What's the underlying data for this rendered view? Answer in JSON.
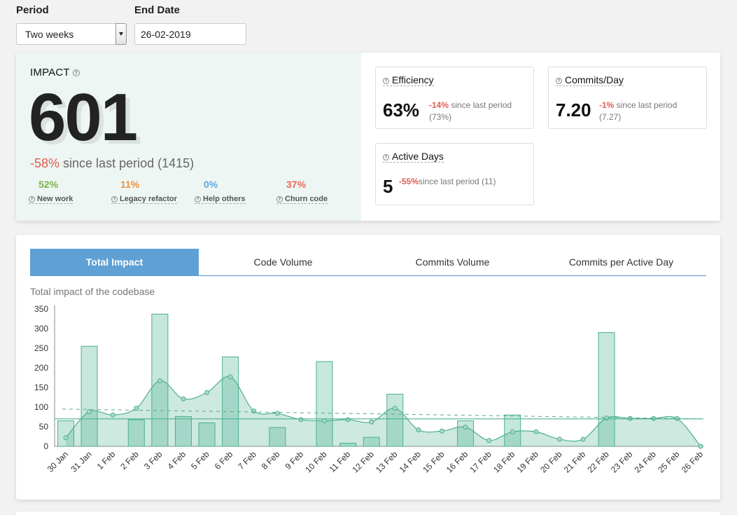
{
  "filters": {
    "period_label": "Period",
    "period_value": "Two weeks",
    "end_date_label": "End Date",
    "end_date_value": "26-02-2019"
  },
  "impact": {
    "title": "IMPACT",
    "value": "601",
    "change": "-58%",
    "since_text": " since last period (1415)",
    "breakdown": [
      {
        "pct": "52%",
        "label": "New work",
        "color": "#7cb342"
      },
      {
        "pct": "11%",
        "label": "Legacy refactor",
        "color": "#f0913c"
      },
      {
        "pct": "0%",
        "label": "Help others",
        "color": "#5fa8e0"
      },
      {
        "pct": "37%",
        "label": "Churn code",
        "color": "#e8685c"
      }
    ]
  },
  "metrics": {
    "efficiency": {
      "title": "Efficiency",
      "value": "63%",
      "change": "-14%",
      "since": " since last period",
      "prev": "(73%)"
    },
    "commits_day": {
      "title": "Commits/Day",
      "value": "7.20",
      "change": "-1%",
      "since": " since last period",
      "prev": "(7.27)"
    },
    "active_days": {
      "title": "Active Days",
      "value": "5",
      "change": "-55%",
      "since": "since last period (11)"
    }
  },
  "tabs": [
    "Total Impact",
    "Code Volume",
    "Commits Volume",
    "Commits per Active Day"
  ],
  "chart_subtitle": "Total impact of the codebase",
  "colors": {
    "accent": "#5fa1d5",
    "negative": "#e05d4d",
    "bar_fill": "#c3e6dc",
    "bar_stroke": "#4db08f",
    "line": "#4db08f"
  },
  "chart_data": {
    "type": "bar",
    "categories": [
      "30 Jan",
      "31 Jan",
      "1 Feb",
      "2 Feb",
      "3 Feb",
      "4 Feb",
      "5 Feb",
      "6 Feb",
      "7 Feb",
      "8 Feb",
      "9 Feb",
      "10 Feb",
      "11 Feb",
      "12 Feb",
      "13 Feb",
      "14 Feb",
      "15 Feb",
      "16 Feb",
      "17 Feb",
      "18 Feb",
      "19 Feb",
      "20 Feb",
      "21 Feb",
      "22 Feb",
      "23 Feb",
      "24 Feb",
      "25 Feb",
      "26 Feb"
    ],
    "series": [
      {
        "type": "bar",
        "values": [
          65,
          255,
          0,
          68,
          337,
          76,
          60,
          228,
          0,
          48,
          0,
          216,
          8,
          23,
          133,
          0,
          0,
          65,
          0,
          80,
          0,
          0,
          0,
          290,
          0,
          0,
          0,
          0
        ]
      },
      {
        "type": "line-smooth",
        "values": [
          22,
          88,
          80,
          97,
          167,
          121,
          137,
          177,
          90,
          84,
          68,
          65,
          68,
          62,
          97,
          42,
          39,
          49,
          15,
          37,
          37,
          18,
          18,
          72,
          71,
          71,
          71,
          0
        ]
      }
    ],
    "reference_lines": [
      {
        "style": "dashed",
        "y_start": 95,
        "y_end": 70
      },
      {
        "style": "solid",
        "y": 70
      }
    ],
    "ylim": [
      0,
      350
    ],
    "yticks": [
      0,
      50,
      100,
      150,
      200,
      250,
      300,
      350
    ],
    "grid": false
  }
}
